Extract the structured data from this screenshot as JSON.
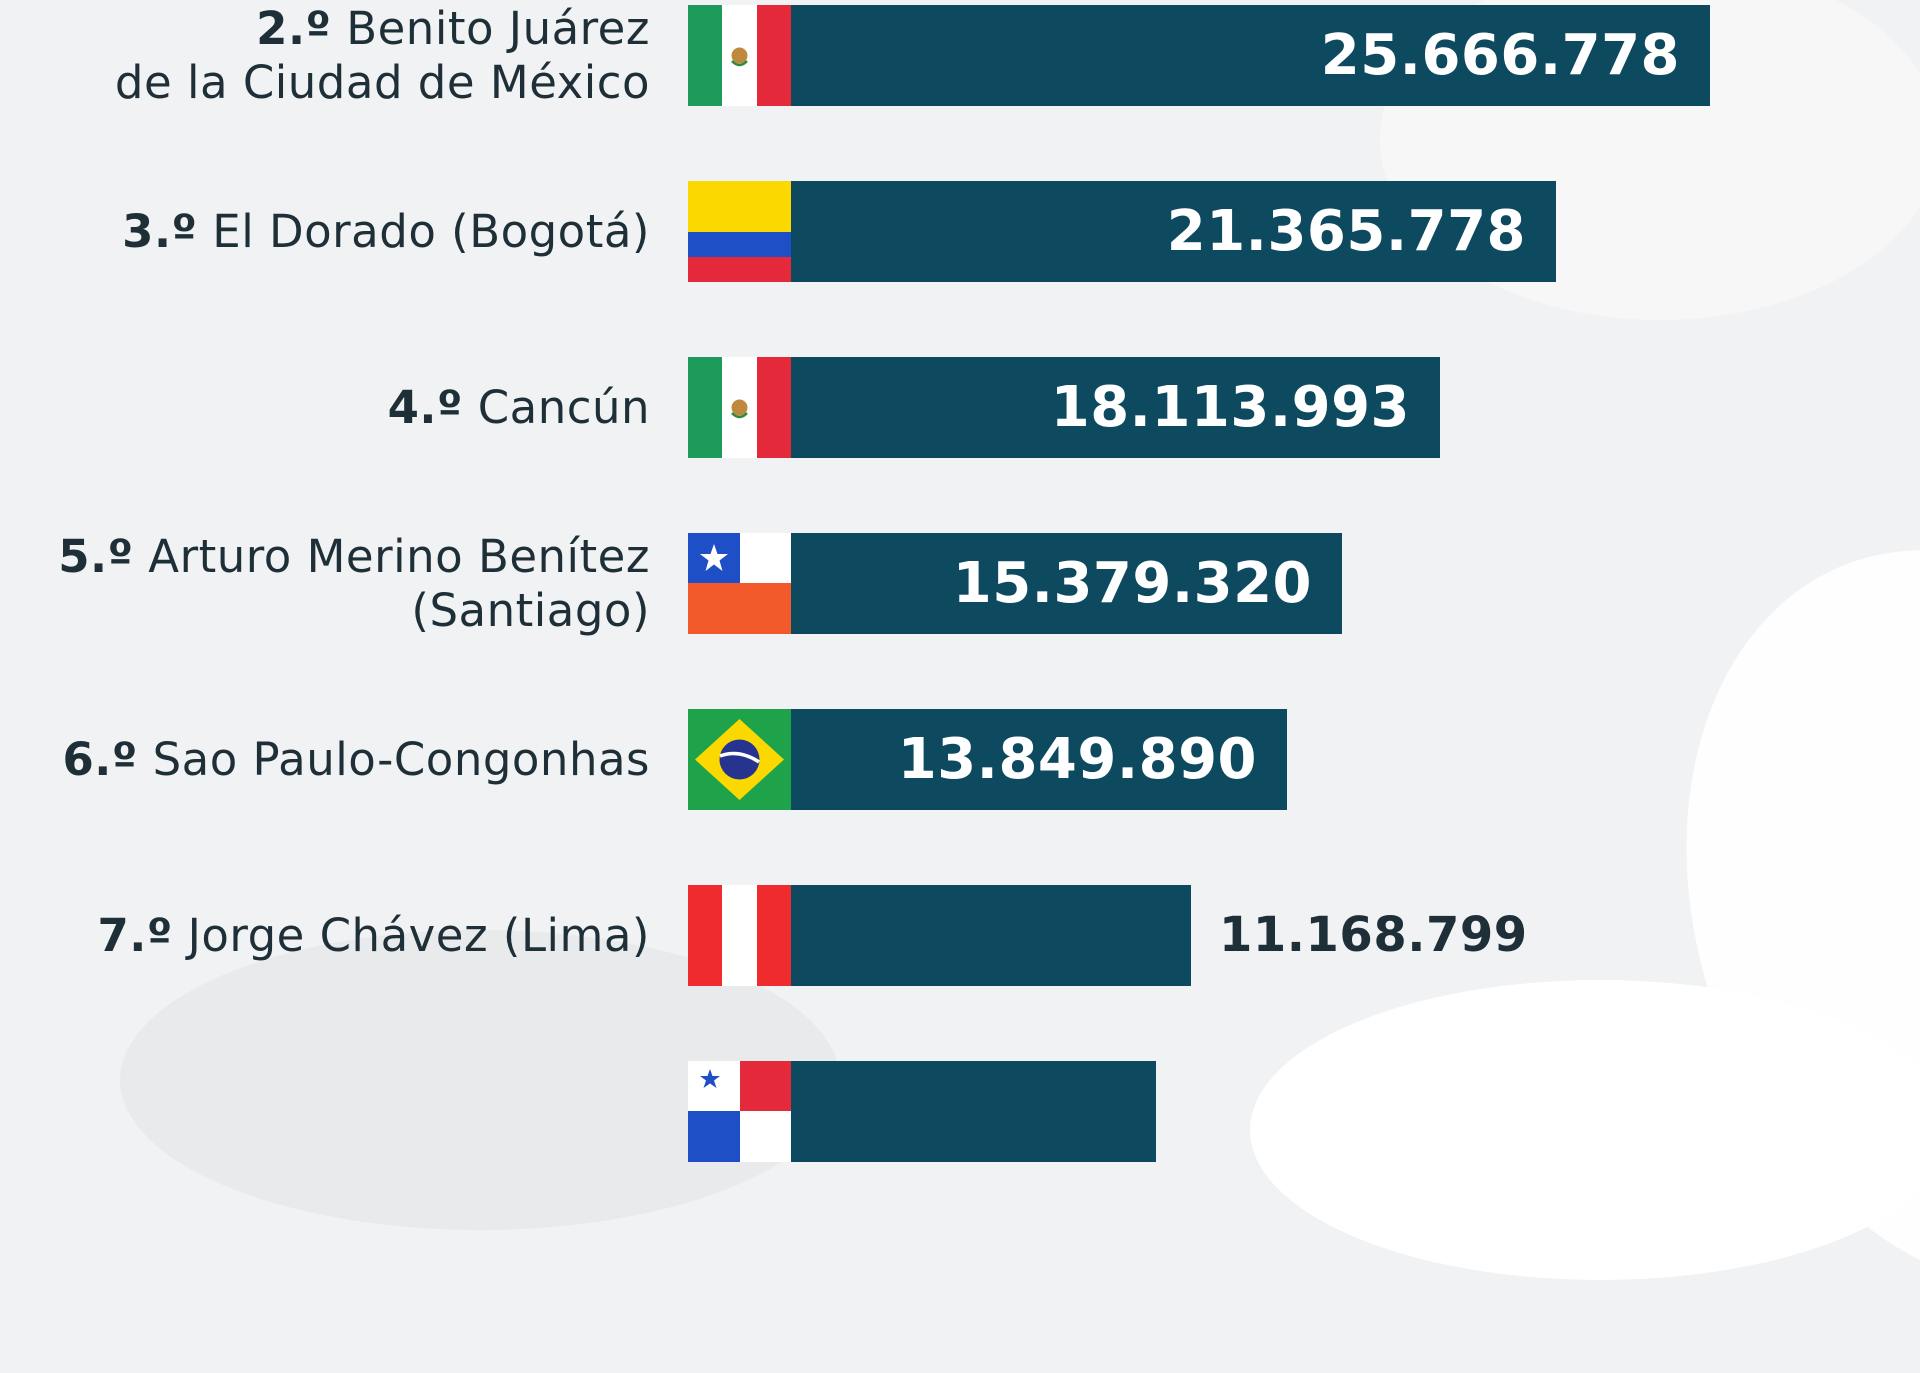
{
  "chart_data": {
    "type": "bar",
    "orientation": "horizontal",
    "title": "",
    "xlabel": "",
    "ylabel": "",
    "xlim": [
      0,
      30000000
    ],
    "categories": [
      {
        "rank": "2.º",
        "name": "Benito Juárez",
        "name2": "de la Ciudad de México",
        "flag": "mexico-flag"
      },
      {
        "rank": "3.º",
        "name": "El Dorado (Bogotá)",
        "name2": "",
        "flag": "colombia-flag"
      },
      {
        "rank": "4.º",
        "name": "Cancún",
        "name2": "",
        "flag": "mexico-flag"
      },
      {
        "rank": "5.º",
        "name": "Arturo Merino Benítez",
        "name2": "(Santiago)",
        "flag": "chile-flag"
      },
      {
        "rank": "6.º",
        "name": "Sao Paulo-Congonhas",
        "name2": "",
        "flag": "brazil-flag"
      },
      {
        "rank": "7.º",
        "name": "Jorge Chávez (Lima)",
        "name2": "",
        "flag": "peru-flag"
      },
      {
        "rank": "",
        "name": "",
        "name2": "",
        "flag": "panama-flag"
      }
    ],
    "values": [
      25666778,
      21365778,
      18113993,
      15379320,
      13849890,
      11168799,
      10200000
    ],
    "value_labels": [
      "25.666.778",
      "21.365.778",
      "18.113.993",
      "15.379.320",
      "13.849.890",
      "11.168.799",
      ""
    ],
    "colors": {
      "bar": "#0d4a5f",
      "label_text": "#1f2f38",
      "value_text_inside": "#ffffff",
      "background": "#f1f2f4"
    },
    "grid": false,
    "legend": "none"
  }
}
